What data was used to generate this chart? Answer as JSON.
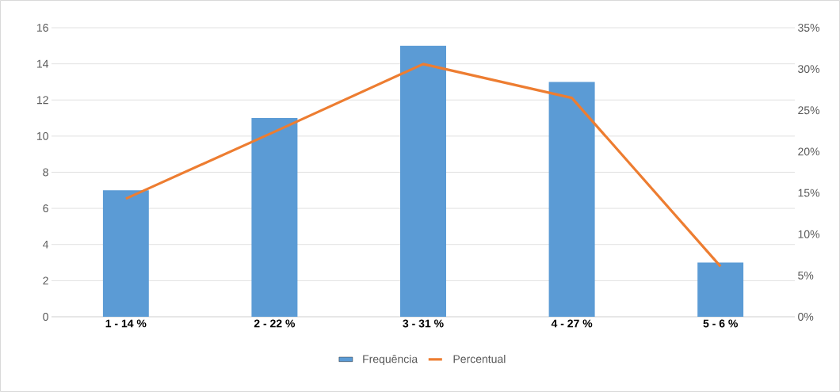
{
  "chart_data": {
    "type": "bar",
    "categories": [
      "1 - 14 %",
      "2 - 22 %",
      "3 - 31 %",
      "4 - 27 %",
      "5 - 6 %"
    ],
    "series": [
      {
        "name": "Frequência",
        "color": "#5b9bd5",
        "values": [
          7,
          11,
          15,
          13,
          3
        ]
      },
      {
        "name": "Percentual",
        "type": "line",
        "axis": "y2",
        "color": "#ed7d31",
        "values": [
          14.3,
          22.4,
          30.6,
          26.5,
          6.1
        ]
      }
    ],
    "ylim": [
      0,
      16
    ],
    "yticks": [
      0,
      2,
      4,
      6,
      8,
      10,
      12,
      14,
      16
    ],
    "y2lim": [
      0,
      35
    ],
    "y2ticks": [
      {
        "value": 0,
        "label": "0%"
      },
      {
        "value": 5,
        "label": "5%"
      },
      {
        "value": 10,
        "label": "10%"
      },
      {
        "value": 15,
        "label": "15%"
      },
      {
        "value": 20,
        "label": "20%"
      },
      {
        "value": 25,
        "label": "25%"
      },
      {
        "value": 30,
        "label": "30%"
      },
      {
        "value": 35,
        "label": "35%"
      }
    ],
    "grid": "y",
    "legend": "bottom"
  }
}
